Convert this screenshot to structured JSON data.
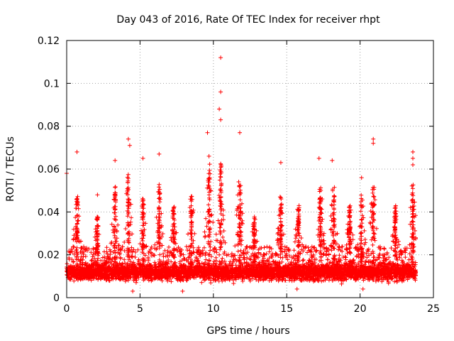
{
  "chart_data": {
    "type": "scatter",
    "title": "Day 043 of 2016, Rate Of TEC Index for receiver rhpt",
    "xlabel": "GPS time / hours",
    "ylabel": "ROTI / TECUs",
    "xlim": [
      0,
      25
    ],
    "ylim": [
      0,
      0.12
    ],
    "xticks": [
      0,
      5,
      10,
      15,
      20,
      25
    ],
    "yticks": [
      0,
      0.02,
      0.04,
      0.06,
      0.08,
      0.1,
      0.12
    ],
    "xtick_labels": [
      "0",
      "5",
      "10",
      "15",
      "20",
      "25"
    ],
    "ytick_labels": [
      "0",
      "0.02",
      "0.04",
      "0.06",
      "0.08",
      "0.1",
      "0.12"
    ],
    "grid": true,
    "marker": "+",
    "series": [
      {
        "name": "ROTI",
        "color": "#ff0000",
        "typical_range": [
          0.005,
          0.03
        ],
        "x_extent": [
          0,
          23.8
        ],
        "highlights": [
          {
            "x": 10.5,
            "y": 0.112
          },
          {
            "x": 10.5,
            "y": 0.096
          },
          {
            "x": 10.4,
            "y": 0.088
          },
          {
            "x": 10.5,
            "y": 0.083
          },
          {
            "x": 11.8,
            "y": 0.077
          },
          {
            "x": 9.6,
            "y": 0.077
          },
          {
            "x": 20.9,
            "y": 0.074
          },
          {
            "x": 20.9,
            "y": 0.072
          },
          {
            "x": 4.2,
            "y": 0.074
          },
          {
            "x": 4.3,
            "y": 0.071
          },
          {
            "x": 23.6,
            "y": 0.068
          },
          {
            "x": 23.6,
            "y": 0.065
          },
          {
            "x": 0.7,
            "y": 0.068
          },
          {
            "x": 6.3,
            "y": 0.067
          },
          {
            "x": 9.7,
            "y": 0.066
          },
          {
            "x": 5.2,
            "y": 0.065
          },
          {
            "x": 17.2,
            "y": 0.065
          },
          {
            "x": 18.1,
            "y": 0.064
          },
          {
            "x": 3.3,
            "y": 0.064
          },
          {
            "x": 14.6,
            "y": 0.063
          },
          {
            "x": 23.6,
            "y": 0.062
          },
          {
            "x": 0.0,
            "y": 0.058
          },
          {
            "x": 20.1,
            "y": 0.056
          },
          {
            "x": 2.1,
            "y": 0.048
          },
          {
            "x": 15.6,
            "y": 0.032
          },
          {
            "x": 4.5,
            "y": 0.003
          },
          {
            "x": 7.9,
            "y": 0.003
          },
          {
            "x": 15.7,
            "y": 0.004
          },
          {
            "x": 20.2,
            "y": 0.004
          }
        ]
      }
    ]
  }
}
